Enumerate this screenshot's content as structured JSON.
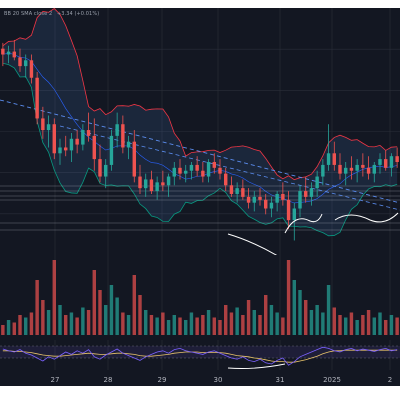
{
  "legend": {
    "indicator_text": "BB 20 SMA close 2",
    "change_text": "+3.34 (+0.01%)"
  },
  "colors": {
    "background": "#131722",
    "grid": "#2a2e39",
    "up": "#26a69a",
    "down": "#ef5350",
    "bb_fill": "#5b9cf6",
    "bb_upper": "#f23645",
    "bb_lower": "#089981",
    "bb_basis": "#2962ff",
    "trendline": "#5b8def",
    "annotation": "#ffffff",
    "osc_signal": "#e9c46a",
    "osc_line": "#7b61ff"
  },
  "chart_data": {
    "type": "candlestick",
    "x_tick_labels": [
      "27",
      "28",
      "29",
      "30",
      "31",
      "2025",
      "2"
    ],
    "price": {
      "description": "Downtrend with Bollinger Bands (red upper, green lower, blue fill), dashed descending trendline, horizontal support/resistance lines, white bullish-divergence curves near the lows",
      "candles_ohlc": [
        [
          86,
          88,
          80,
          84
        ],
        [
          84,
          87,
          81,
          85
        ],
        [
          85,
          89,
          82,
          83
        ],
        [
          83,
          86,
          78,
          80
        ],
        [
          80,
          84,
          76,
          82
        ],
        [
          82,
          84,
          74,
          76
        ],
        [
          76,
          78,
          60,
          62
        ],
        [
          62,
          66,
          55,
          58
        ],
        [
          58,
          63,
          52,
          60
        ],
        [
          60,
          62,
          48,
          50
        ],
        [
          50,
          55,
          46,
          52
        ],
        [
          52,
          56,
          49,
          51
        ],
        [
          51,
          57,
          47,
          55
        ],
        [
          55,
          58,
          50,
          53
        ],
        [
          53,
          60,
          51,
          58
        ],
        [
          58,
          64,
          54,
          56
        ],
        [
          56,
          62,
          44,
          48
        ],
        [
          48,
          53,
          40,
          42
        ],
        [
          42,
          48,
          38,
          46
        ],
        [
          46,
          58,
          44,
          56
        ],
        [
          56,
          64,
          52,
          60
        ],
        [
          60,
          63,
          50,
          52
        ],
        [
          52,
          56,
          48,
          54
        ],
        [
          54,
          58,
          40,
          42
        ],
        [
          42,
          46,
          36,
          38
        ],
        [
          38,
          43,
          35,
          41
        ],
        [
          41,
          44,
          36,
          37
        ],
        [
          37,
          42,
          34,
          40
        ],
        [
          40,
          44,
          37,
          39
        ],
        [
          39,
          43,
          35,
          42
        ],
        [
          42,
          47,
          39,
          45
        ],
        [
          45,
          48,
          41,
          43
        ],
        [
          43,
          46,
          40,
          44
        ],
        [
          44,
          47,
          41,
          46
        ],
        [
          46,
          49,
          42,
          44
        ],
        [
          44,
          47,
          40,
          42
        ],
        [
          42,
          48,
          40,
          47
        ],
        [
          47,
          50,
          43,
          45
        ],
        [
          45,
          48,
          41,
          43
        ],
        [
          43,
          45,
          37,
          39
        ],
        [
          39,
          42,
          35,
          36
        ],
        [
          36,
          40,
          33,
          38
        ],
        [
          38,
          41,
          34,
          35
        ],
        [
          35,
          38,
          31,
          33
        ],
        [
          33,
          37,
          30,
          35
        ],
        [
          35,
          38,
          32,
          34
        ],
        [
          34,
          36,
          29,
          31
        ],
        [
          31,
          35,
          28,
          33
        ],
        [
          33,
          37,
          30,
          36
        ],
        [
          36,
          40,
          32,
          34
        ],
        [
          34,
          37,
          24,
          27
        ],
        [
          27,
          33,
          20,
          31
        ],
        [
          31,
          39,
          28,
          37
        ],
        [
          37,
          42,
          33,
          35
        ],
        [
          35,
          40,
          32,
          38
        ],
        [
          38,
          44,
          35,
          42
        ],
        [
          42,
          48,
          39,
          46
        ],
        [
          46,
          60,
          44,
          50
        ],
        [
          50,
          54,
          44,
          46
        ],
        [
          46,
          50,
          41,
          43
        ],
        [
          43,
          47,
          39,
          45
        ],
        [
          45,
          49,
          41,
          44
        ],
        [
          44,
          48,
          40,
          46
        ],
        [
          46,
          50,
          42,
          45
        ],
        [
          45,
          49,
          41,
          43
        ],
        [
          43,
          47,
          40,
          46
        ],
        [
          46,
          50,
          43,
          48
        ],
        [
          48,
          51,
          44,
          45
        ],
        [
          45,
          50,
          42,
          49
        ],
        [
          49,
          52,
          45,
          47
        ]
      ],
      "y_range": [
        15,
        100
      ]
    },
    "volume": {
      "values": [
        4,
        6,
        5,
        8,
        7,
        9,
        22,
        14,
        10,
        30,
        12,
        8,
        9,
        7,
        11,
        10,
        26,
        18,
        12,
        20,
        15,
        9,
        8,
        24,
        16,
        10,
        8,
        7,
        9,
        6,
        8,
        7,
        6,
        9,
        7,
        8,
        10,
        7,
        6,
        12,
        9,
        11,
        8,
        14,
        10,
        8,
        16,
        12,
        9,
        7,
        30,
        22,
        18,
        14,
        10,
        12,
        9,
        20,
        11,
        8,
        7,
        9,
        6,
        8,
        10,
        7,
        9,
        6,
        8,
        7
      ],
      "y_range": [
        0,
        32
      ]
    },
    "oscillator": {
      "line": [
        55,
        52,
        50,
        54,
        48,
        45,
        40,
        35,
        42,
        38,
        44,
        50,
        46,
        52,
        48,
        54,
        42,
        38,
        45,
        50,
        55,
        48,
        44,
        40,
        36,
        42,
        46,
        50,
        52,
        48,
        54,
        56,
        52,
        50,
        48,
        46,
        50,
        52,
        48,
        44,
        40,
        38,
        42,
        36,
        34,
        38,
        32,
        30,
        36,
        40,
        28,
        34,
        42,
        46,
        50,
        54,
        58,
        56,
        52,
        50,
        54,
        56,
        52,
        55,
        53,
        51,
        54,
        56,
        52,
        54
      ],
      "signal": [
        52,
        52,
        51,
        51,
        50,
        49,
        47,
        45,
        44,
        43,
        43,
        44,
        45,
        46,
        47,
        48,
        47,
        46,
        46,
        47,
        48,
        48,
        47,
        46,
        44,
        43,
        43,
        44,
        45,
        46,
        48,
        49,
        50,
        50,
        50,
        49,
        49,
        49,
        49,
        48,
        46,
        44,
        43,
        42,
        40,
        39,
        37,
        35,
        34,
        34,
        33,
        33,
        35,
        37,
        40,
        43,
        47,
        50,
        52,
        52,
        53,
        53,
        53,
        53,
        53,
        53,
        53,
        53,
        53,
        53
      ],
      "y_range": [
        20,
        70
      ]
    }
  }
}
